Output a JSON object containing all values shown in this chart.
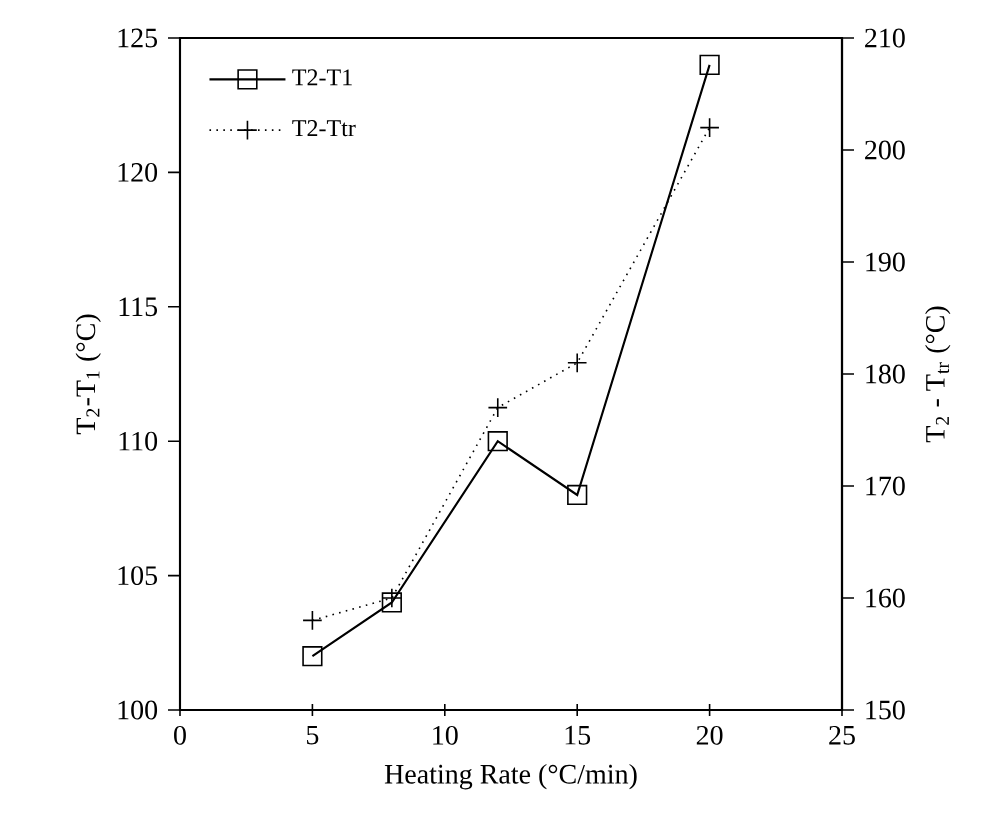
{
  "chart_data": {
    "type": "line",
    "xlabel": "Heating Rate (°C/min)",
    "ylabel": "T$_{2}$-T$_{1}$ (°C)",
    "y2label": "T$_{2}$ - T$_{tr}$ (°C)",
    "x": [
      5,
      8,
      12,
      15,
      20
    ],
    "xlim": [
      0,
      25
    ],
    "xticks": [
      0,
      5,
      10,
      15,
      20,
      25
    ],
    "ylim": [
      100,
      125
    ],
    "yticks": [
      100,
      105,
      110,
      115,
      120,
      125
    ],
    "y2lim": [
      150,
      210
    ],
    "y2ticks": [
      150,
      160,
      170,
      180,
      190,
      200,
      210
    ],
    "legend": "top left",
    "series": [
      {
        "name": "T2-T1",
        "color": "#000000",
        "values": [
          102,
          104,
          110,
          108,
          124
        ],
        "marker": "square",
        "line_style": "solid"
      },
      {
        "name": "T2-Ttr",
        "color": "#000000",
        "values": [
          158,
          160,
          177,
          181,
          202
        ],
        "axis": "y2",
        "marker": "cross",
        "line_style": "dotted"
      }
    ]
  }
}
